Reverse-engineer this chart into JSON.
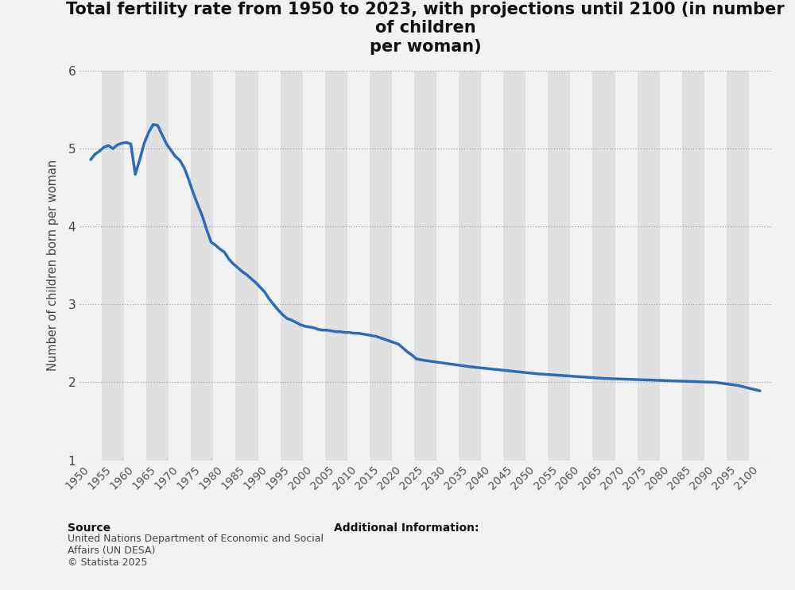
{
  "title": "Total fertility rate from 1950 to 2023, with projections until 2100 (in number of children\nper woman)",
  "ylabel": "Number of children born per woman",
  "line_color": "#2a6ebb",
  "background_color": "#f2f2f2",
  "plot_bg_color": "#f2f2f2",
  "stripe_color_dark": "#e0e0e0",
  "stripe_color_light": "#f2f2f2",
  "ylim": [
    1,
    6
  ],
  "yticks": [
    1,
    2,
    3,
    4,
    5,
    6
  ],
  "xtick_start": 1950,
  "xtick_end": 2100,
  "xtick_step": 5,
  "source_label": "Source",
  "source_body": "United Nations Department of Economic and Social\nAffairs (UN DESA)\n© Statista 2025",
  "additional_text": "Additional Information:",
  "years": [
    1950,
    1951,
    1952,
    1953,
    1954,
    1955,
    1956,
    1957,
    1958,
    1959,
    1960,
    1961,
    1962,
    1963,
    1964,
    1965,
    1966,
    1967,
    1968,
    1969,
    1970,
    1971,
    1972,
    1973,
    1974,
    1975,
    1976,
    1977,
    1978,
    1979,
    1980,
    1981,
    1982,
    1983,
    1984,
    1985,
    1986,
    1987,
    1988,
    1989,
    1990,
    1991,
    1992,
    1993,
    1994,
    1995,
    1996,
    1997,
    1998,
    1999,
    2000,
    2001,
    2002,
    2003,
    2004,
    2005,
    2006,
    2007,
    2008,
    2009,
    2010,
    2011,
    2012,
    2013,
    2014,
    2015,
    2016,
    2017,
    2018,
    2019,
    2020,
    2021,
    2022,
    2023,
    2025,
    2030,
    2035,
    2040,
    2045,
    2050,
    2055,
    2060,
    2065,
    2070,
    2075,
    2080,
    2085,
    2090,
    2095,
    2100
  ],
  "values": [
    4.86,
    4.93,
    4.97,
    5.02,
    5.04,
    5.0,
    5.05,
    5.07,
    5.08,
    5.06,
    4.67,
    4.86,
    5.07,
    5.21,
    5.31,
    5.3,
    5.18,
    5.06,
    4.98,
    4.9,
    4.85,
    4.75,
    4.6,
    4.43,
    4.28,
    4.14,
    3.96,
    3.8,
    3.76,
    3.71,
    3.67,
    3.58,
    3.52,
    3.47,
    3.42,
    3.38,
    3.33,
    3.28,
    3.22,
    3.16,
    3.07,
    3.0,
    2.93,
    2.87,
    2.82,
    2.8,
    2.77,
    2.74,
    2.72,
    2.71,
    2.7,
    2.68,
    2.67,
    2.67,
    2.66,
    2.65,
    2.65,
    2.64,
    2.64,
    2.63,
    2.63,
    2.62,
    2.61,
    2.6,
    2.59,
    2.57,
    2.55,
    2.53,
    2.51,
    2.49,
    2.44,
    2.39,
    2.35,
    2.3,
    2.28,
    2.24,
    2.2,
    2.17,
    2.14,
    2.11,
    2.09,
    2.07,
    2.05,
    2.04,
    2.03,
    2.02,
    2.01,
    2.0,
    1.96,
    1.89
  ]
}
